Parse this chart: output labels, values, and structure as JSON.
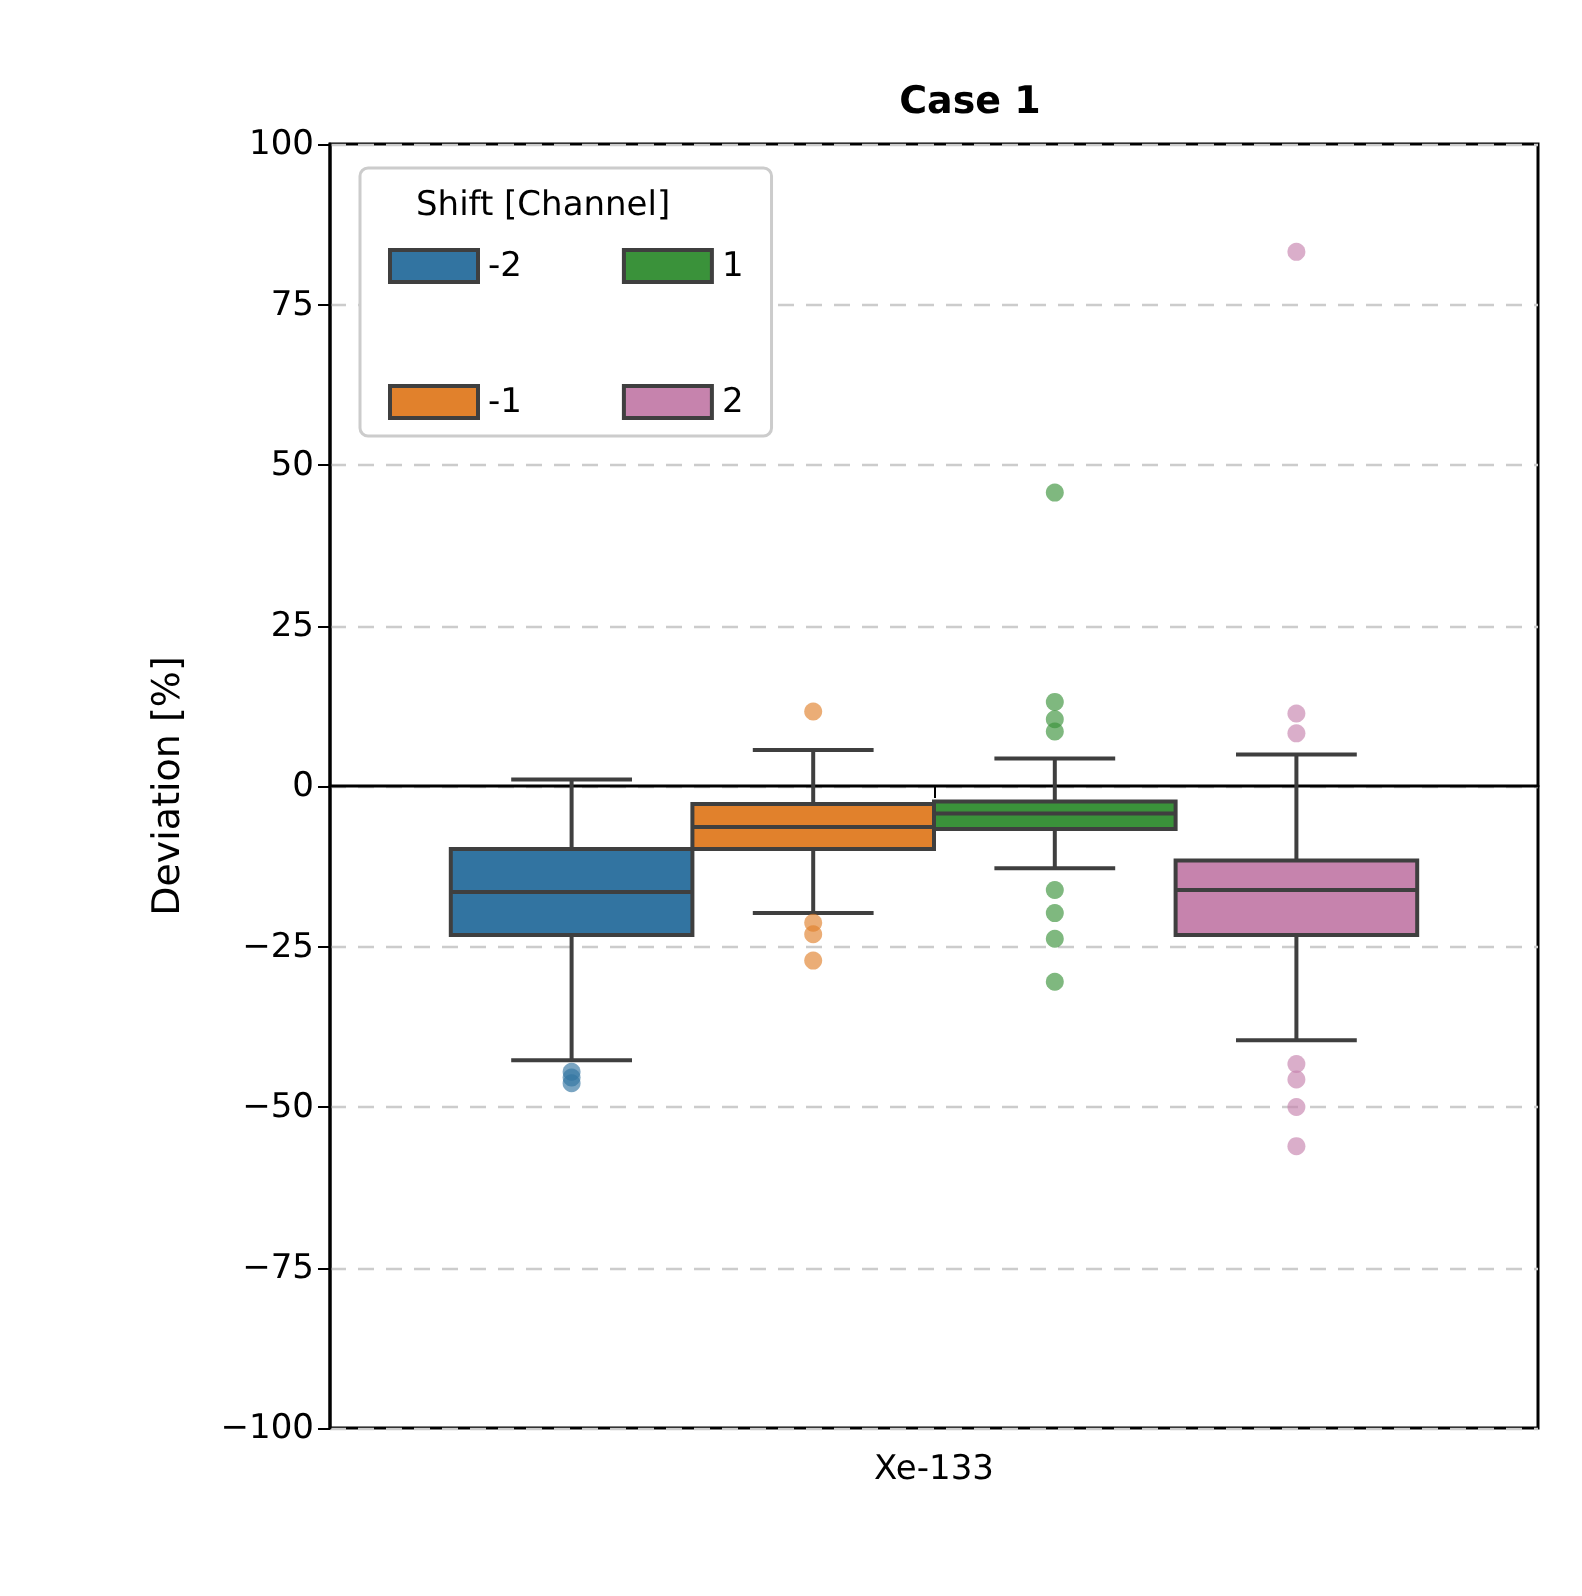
{
  "chart_data": {
    "type": "box",
    "title": "Case 1",
    "ylabel": "Deviation [%]",
    "legend_title": "Shift [Channel]",
    "legend": "top left",
    "grid": "y",
    "categories": [
      "Xe-133"
    ],
    "ylim": [
      -100,
      100
    ],
    "yticks": [
      -100,
      -75,
      -50,
      -25,
      0,
      25,
      50,
      75,
      100
    ],
    "series": [
      {
        "name": "-2",
        "color": "#3274a1",
        "boxes": [
          {
            "low": -42.7,
            "q1": -23.2,
            "median": -16.5,
            "q3": -9.8,
            "high": 1,
            "outliers": [
              -44.5,
              -45.4,
              -46.3
            ]
          }
        ]
      },
      {
        "name": "-1",
        "color": "#e1812c",
        "boxes": [
          {
            "low": -19.8,
            "q1": -9.8,
            "median": -6.4,
            "q3": -2.8,
            "high": 5.6,
            "outliers": [
              11.6,
              -21.3,
              -23.1,
              -27.2
            ]
          }
        ]
      },
      {
        "name": "1",
        "color": "#3a923a",
        "boxes": [
          {
            "low": -12.8,
            "q1": -6.7,
            "median": -4.3,
            "q3": -2.4,
            "high": 4.3,
            "outliers": [
              45.7,
              13.1,
              10.4,
              8.5,
              -16.2,
              -19.8,
              -23.8,
              -30.5
            ]
          }
        ]
      },
      {
        "name": "2",
        "color": "#c683ad",
        "boxes": [
          {
            "low": -39.6,
            "q1": -23.2,
            "median": -16.2,
            "q3": -11.6,
            "high": 4.9,
            "outliers": [
              83.2,
              11.3,
              8.2,
              -43.3,
              -45.7,
              -50,
              -56.1
            ]
          }
        ]
      }
    ]
  }
}
